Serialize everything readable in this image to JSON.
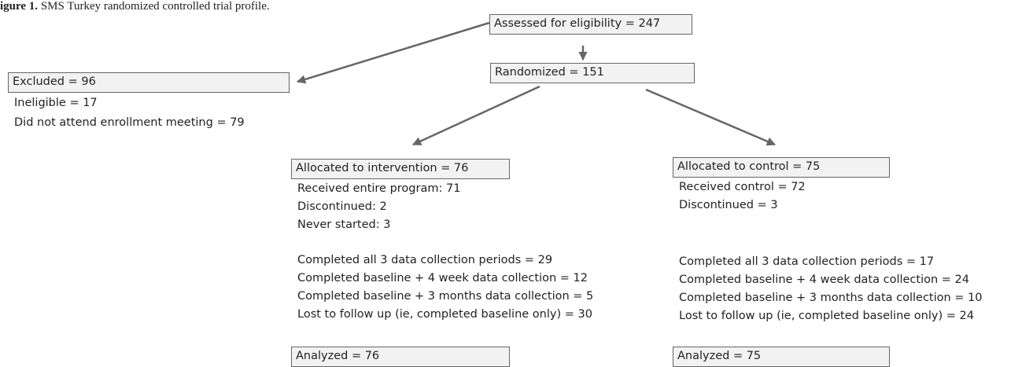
{
  "caption": {
    "lead": "igure 1.",
    "text": "SMS Turkey randomized controlled trial profile."
  },
  "assessed": "Assessed for eligibility = 247",
  "randomized": "Randomized = 151",
  "excluded": {
    "title": "Excluded = 96",
    "lines": [
      "Ineligible = 17",
      "Did not attend enrollment meeting = 79"
    ]
  },
  "intervention": {
    "title": "Allocated to intervention = 76",
    "lines": [
      "Received entire program: 71",
      "Discontinued: 2",
      "Never started: 3"
    ],
    "followup": [
      "Completed all 3 data collection periods = 29",
      "Completed baseline + 4 week data collection = 12",
      "Completed baseline + 3 months data collection = 5",
      "Lost to follow up (ie, completed baseline only) = 30"
    ],
    "analyzed": "Analyzed = 76"
  },
  "control": {
    "title": "Allocated to control = 75",
    "lines": [
      "Received control = 72",
      "Discontinued = 3"
    ],
    "followup": [
      "Completed all 3 data collection periods = 17",
      "Completed baseline + 4 week data collection = 24",
      "Completed baseline + 3 months data collection = 10",
      "Lost to follow up (ie, completed baseline only) = 24"
    ],
    "analyzed": "Analyzed = 75"
  },
  "colors": {
    "arrow": "#666666",
    "box_fill": "#f2f2f2",
    "box_border": "#666666"
  }
}
